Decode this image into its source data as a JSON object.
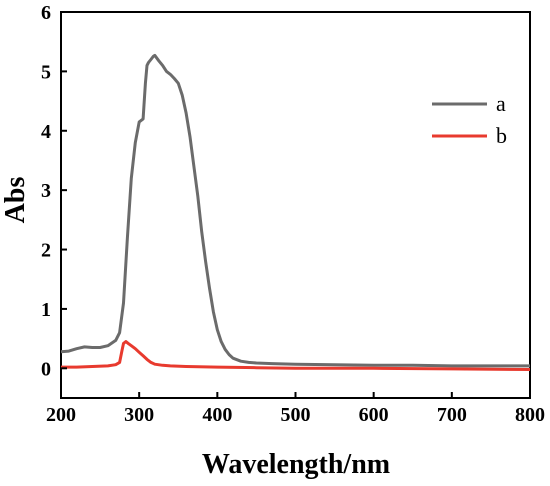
{
  "chart_data": {
    "type": "line",
    "title": "",
    "xlabel": "Wavelength/nm",
    "ylabel": "Abs",
    "xlim": [
      200,
      800
    ],
    "ylim": [
      -0.5,
      6
    ],
    "xticks": [
      200,
      300,
      400,
      500,
      600,
      700,
      800
    ],
    "yticks": [
      0,
      1,
      2,
      3,
      4,
      5,
      6
    ],
    "grid": false,
    "legend_position": "upper-right",
    "series": [
      {
        "name": "a",
        "color": "#6b6b6b",
        "x": [
          200,
          210,
          220,
          230,
          240,
          250,
          260,
          270,
          275,
          280,
          285,
          290,
          295,
          300,
          305,
          308,
          310,
          312,
          315,
          318,
          320,
          325,
          330,
          335,
          340,
          345,
          350,
          355,
          360,
          365,
          370,
          375,
          380,
          385,
          390,
          395,
          400,
          405,
          410,
          415,
          420,
          430,
          440,
          450,
          470,
          500,
          550,
          600,
          650,
          700,
          750,
          800
        ],
        "y": [
          0.28,
          0.29,
          0.33,
          0.36,
          0.35,
          0.35,
          0.38,
          0.47,
          0.6,
          1.1,
          2.2,
          3.2,
          3.8,
          4.15,
          4.2,
          4.8,
          5.1,
          5.15,
          5.2,
          5.25,
          5.27,
          5.18,
          5.1,
          5.0,
          4.95,
          4.88,
          4.8,
          4.6,
          4.3,
          3.9,
          3.4,
          2.9,
          2.3,
          1.8,
          1.35,
          0.95,
          0.65,
          0.45,
          0.32,
          0.23,
          0.17,
          0.12,
          0.1,
          0.09,
          0.08,
          0.07,
          0.06,
          0.05,
          0.05,
          0.04,
          0.04,
          0.04
        ]
      },
      {
        "name": "b",
        "color": "#e83a2e",
        "x": [
          200,
          220,
          240,
          260,
          270,
          275,
          278,
          280,
          283,
          286,
          290,
          295,
          300,
          305,
          310,
          315,
          320,
          330,
          340,
          360,
          400,
          450,
          500,
          550,
          600,
          700,
          800
        ],
        "y": [
          0.02,
          0.02,
          0.03,
          0.04,
          0.06,
          0.1,
          0.3,
          0.42,
          0.45,
          0.42,
          0.38,
          0.33,
          0.27,
          0.21,
          0.15,
          0.1,
          0.07,
          0.05,
          0.04,
          0.03,
          0.02,
          0.01,
          0.0,
          0.0,
          0.0,
          -0.01,
          -0.02
        ]
      }
    ]
  }
}
